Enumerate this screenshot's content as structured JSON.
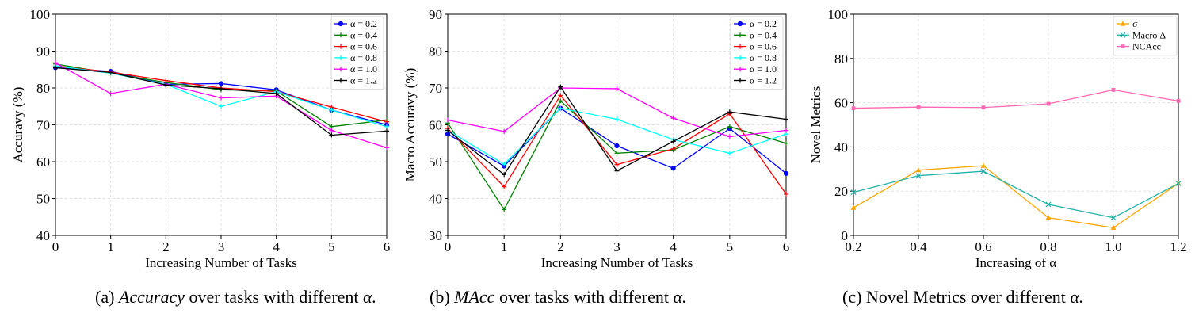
{
  "captions": [
    {
      "label": "(a)",
      "em": "Accuracy",
      "rest": "over tasks with different",
      "sym": "α."
    },
    {
      "label": "(b)",
      "em": "MAcc",
      "rest": "over tasks with different",
      "sym": "α."
    },
    {
      "label": "(c)",
      "em": "",
      "rest": "Novel Metrics over different",
      "sym": "α."
    }
  ],
  "chart_data": [
    {
      "type": "line",
      "xlabel": "Increasing Number of Tasks",
      "ylabel": "Accuravy (%)",
      "x": [
        0,
        1,
        2,
        3,
        4,
        5,
        6
      ],
      "xlim": [
        0,
        6
      ],
      "ylim": [
        40,
        100
      ],
      "xticks": [
        0,
        1,
        2,
        3,
        4,
        5,
        6
      ],
      "yticks": [
        40,
        50,
        60,
        70,
        80,
        90,
        100
      ],
      "grid": true,
      "legend": "top-right",
      "series": [
        {
          "name": "α = 0.2",
          "color": "#0000ff",
          "marker": "circle",
          "values": [
            85.5,
            84.5,
            81.0,
            81.2,
            79.5,
            74.0,
            70.0
          ]
        },
        {
          "name": "α = 0.4",
          "color": "#008000",
          "marker": "plus",
          "values": [
            86.5,
            84.0,
            81.5,
            79.5,
            79.2,
            69.5,
            71.3
          ]
        },
        {
          "name": "α = 0.6",
          "color": "#ff0000",
          "marker": "plus",
          "values": [
            86.0,
            84.3,
            82.0,
            80.0,
            79.0,
            74.8,
            70.8
          ]
        },
        {
          "name": "α = 0.8",
          "color": "#00ffff",
          "marker": "plus",
          "values": [
            86.0,
            84.0,
            81.0,
            75.0,
            79.0,
            74.0,
            69.5
          ]
        },
        {
          "name": "α = 1.0",
          "color": "#ff00ff",
          "marker": "plus",
          "values": [
            86.8,
            78.5,
            81.0,
            77.3,
            77.8,
            68.5,
            63.8
          ]
        },
        {
          "name": "α = 1.2",
          "color": "#000000",
          "marker": "plus",
          "values": [
            85.5,
            84.2,
            80.8,
            79.8,
            78.5,
            67.2,
            68.3
          ]
        }
      ]
    },
    {
      "type": "line",
      "xlabel": "Increasing Number of Tasks",
      "ylabel": "Macro Accuravy (%)",
      "x": [
        0,
        1,
        2,
        3,
        4,
        5,
        6
      ],
      "xlim": [
        0,
        6
      ],
      "ylim": [
        30,
        90
      ],
      "xticks": [
        0,
        1,
        2,
        3,
        4,
        5,
        6
      ],
      "yticks": [
        30,
        40,
        50,
        60,
        70,
        80,
        90
      ],
      "grid": true,
      "legend": "top-right",
      "series": [
        {
          "name": "α = 0.2",
          "color": "#0000ff",
          "marker": "circle",
          "values": [
            57.5,
            48.8,
            64.5,
            54.3,
            48.2,
            59.0,
            46.8
          ]
        },
        {
          "name": "α = 0.4",
          "color": "#008000",
          "marker": "plus",
          "values": [
            60.5,
            37.0,
            66.5,
            52.3,
            53.2,
            59.5,
            55.0
          ]
        },
        {
          "name": "α = 0.6",
          "color": "#ff0000",
          "marker": "plus",
          "values": [
            59.0,
            43.2,
            68.0,
            49.2,
            53.5,
            63.0,
            41.2
          ]
        },
        {
          "name": "α = 0.8",
          "color": "#00ffff",
          "marker": "plus",
          "values": [
            58.5,
            49.3,
            64.5,
            61.5,
            56.0,
            52.3,
            57.5
          ]
        },
        {
          "name": "α = 1.0",
          "color": "#ff00ff",
          "marker": "plus",
          "values": [
            61.3,
            58.2,
            70.0,
            69.8,
            61.8,
            56.8,
            58.5
          ]
        },
        {
          "name": "α = 1.2",
          "color": "#000000",
          "marker": "plus",
          "values": [
            58.5,
            46.5,
            70.3,
            47.5,
            55.5,
            63.5,
            61.5
          ]
        }
      ]
    },
    {
      "type": "line",
      "xlabel": "Increasing of α",
      "ylabel": "Novel Metrics",
      "x": [
        0.2,
        0.4,
        0.6,
        0.8,
        1.0,
        1.2
      ],
      "xlim": [
        0.2,
        1.2
      ],
      "ylim": [
        0,
        100
      ],
      "xticks": [
        0.2,
        0.4,
        0.6,
        0.8,
        1.0,
        1.2
      ],
      "xtick_labels": [
        "0.2",
        "0.4",
        "0.6",
        "0.8",
        "1.0",
        "1.2"
      ],
      "yticks": [
        0,
        20,
        40,
        60,
        80,
        100
      ],
      "grid": true,
      "legend": "top-right",
      "series": [
        {
          "name": "σ",
          "color": "#ffa500",
          "marker": "triangle",
          "values": [
            12.5,
            29.5,
            31.5,
            8.0,
            3.5,
            23.5
          ]
        },
        {
          "name": "Macro Δ",
          "color": "#20b2aa",
          "marker": "x",
          "values": [
            19.5,
            27.0,
            29.0,
            14.0,
            8.0,
            23.5
          ]
        },
        {
          "name": "NCAcc",
          "color": "#ff69b4",
          "marker": "square",
          "values": [
            57.5,
            58.0,
            57.8,
            59.5,
            65.8,
            60.8
          ]
        }
      ]
    }
  ]
}
